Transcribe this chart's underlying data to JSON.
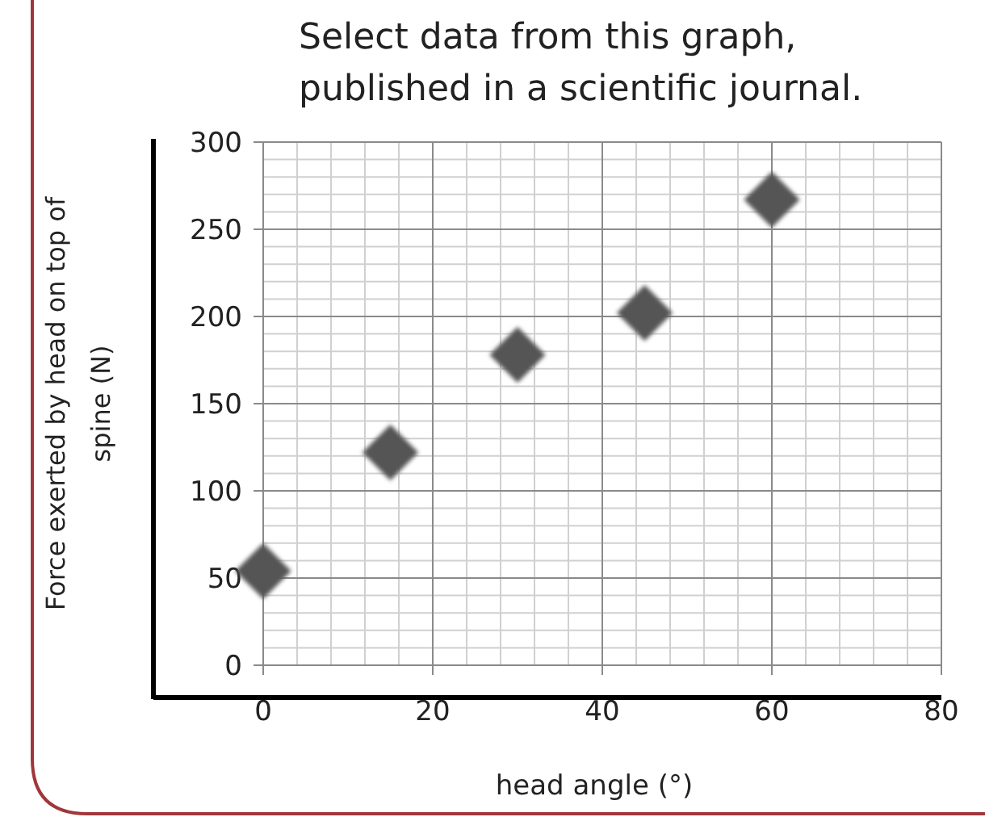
{
  "chart_data": {
    "type": "scatter",
    "title": "Select data from this graph, published in a scientific journal.",
    "xlabel": "head angle (°)",
    "ylabel": "Force exerted by head on top of spine (N)",
    "x": [
      0,
      15,
      30,
      45,
      60
    ],
    "values": [
      54,
      122,
      178,
      202,
      267
    ],
    "color": "#555555",
    "marker": "diamond",
    "xlim": [
      0,
      80
    ],
    "xticks": [
      0,
      20,
      40,
      60,
      80
    ],
    "ylim": [
      0,
      300
    ],
    "yticks": [
      0,
      50,
      100,
      150,
      200,
      250,
      300
    ],
    "grid": true
  }
}
